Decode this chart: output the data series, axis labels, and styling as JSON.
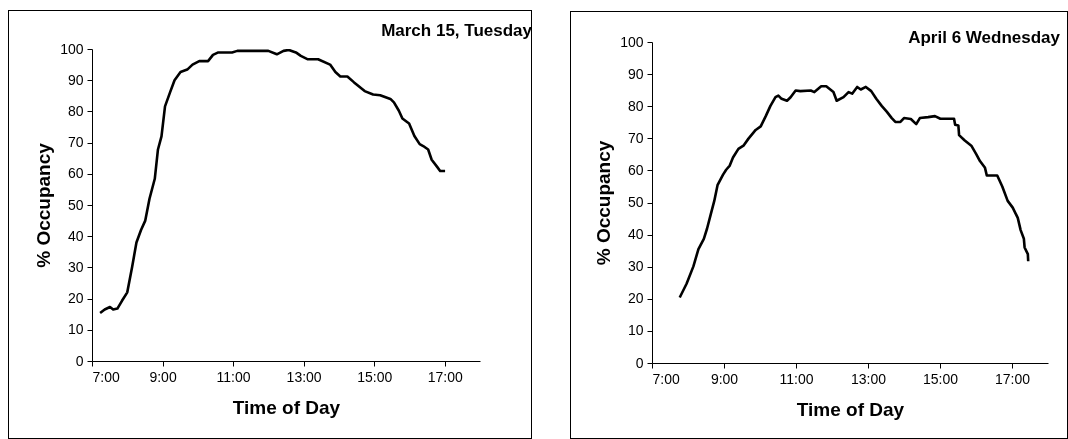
{
  "chart_data": [
    {
      "type": "line",
      "title": "March 15, Tuesday",
      "xlabel": "Time of Day",
      "ylabel": "% Occupancy",
      "xlim": [
        7,
        18
      ],
      "xticks": [
        {
          "value": 7,
          "label": "7:00"
        },
        {
          "value": 9,
          "label": "9:00"
        },
        {
          "value": 11,
          "label": "11:00"
        },
        {
          "value": 13,
          "label": "13:00"
        },
        {
          "value": 15,
          "label": "15:00"
        },
        {
          "value": 17,
          "label": "17:00"
        }
      ],
      "ylim": [
        0,
        100
      ],
      "yticks": [
        0,
        10,
        20,
        30,
        40,
        50,
        60,
        70,
        80,
        90,
        100
      ],
      "grid": false,
      "series": [
        {
          "color": "#000000",
          "x": [
            7.23,
            7.36,
            7.51,
            7.6,
            7.72,
            7.85,
            8.0,
            8.14,
            8.26,
            8.39,
            8.51,
            8.63,
            8.78,
            8.87,
            8.97,
            9.07,
            9.21,
            9.34,
            9.51,
            9.7,
            9.85,
            10.04,
            10.29,
            10.43,
            10.58,
            10.97,
            11.12,
            12.0,
            12.24,
            12.43,
            12.58,
            12.78,
            12.92,
            13.12,
            13.41,
            13.75,
            13.9,
            14.04,
            14.24,
            14.43,
            14.73,
            14.97,
            15.17,
            15.46,
            15.56,
            15.7,
            15.8,
            15.99,
            16.14,
            16.29,
            16.39,
            16.53,
            16.63,
            16.78,
            16.87,
            17.01
          ],
          "values": [
            15.4,
            16.5,
            17.3,
            16.5,
            16.8,
            19.3,
            22,
            30.3,
            38,
            42,
            45,
            52,
            58.4,
            67.8,
            72,
            81.6,
            86,
            90,
            92.6,
            93.4,
            95,
            96.1,
            96.1,
            98.1,
            98.9,
            98.9,
            99.4,
            99.4,
            98.3,
            99.4,
            99.7,
            98.9,
            97.8,
            96.7,
            96.7,
            95,
            92.6,
            91.2,
            91.2,
            89.3,
            86.5,
            85.4,
            85.2,
            84,
            82.9,
            80.2,
            77.7,
            76.1,
            72.1,
            69.5,
            68.9,
            67.8,
            64.5,
            62.3,
            60.9,
            60.9
          ]
        }
      ]
    },
    {
      "type": "line",
      "title": "April 6 Wednesday",
      "xlabel": "Time of Day",
      "ylabel": "% Occupancy",
      "xlim": [
        7,
        18
      ],
      "xticks": [
        {
          "value": 7,
          "label": "7:00"
        },
        {
          "value": 9,
          "label": "9:00"
        },
        {
          "value": 11,
          "label": "11:00"
        },
        {
          "value": 13,
          "label": "13:00"
        },
        {
          "value": 15,
          "label": "15:00"
        },
        {
          "value": 17,
          "label": "17:00"
        }
      ],
      "ylim": [
        0,
        100
      ],
      "yticks": [
        0,
        10,
        20,
        30,
        40,
        50,
        60,
        70,
        80,
        90,
        100
      ],
      "grid": false,
      "series": [
        {
          "color": "#000000",
          "x": [
            7.77,
            7.96,
            8.15,
            8.29,
            8.44,
            8.53,
            8.63,
            8.73,
            8.82,
            8.97,
            9.06,
            9.16,
            9.25,
            9.4,
            9.54,
            9.68,
            9.88,
            10.02,
            10.16,
            10.29,
            10.43,
            10.51,
            10.6,
            10.75,
            10.85,
            10.99,
            11.12,
            11.41,
            11.51,
            11.7,
            11.84,
            12.04,
            12.13,
            12.32,
            12.46,
            12.56,
            12.7,
            12.8,
            12.94,
            13.09,
            13.23,
            13.38,
            13.52,
            13.66,
            13.76,
            13.9,
            14.0,
            14.19,
            14.34,
            14.44,
            14.67,
            14.86,
            15.01,
            15.39,
            15.42,
            15.51,
            15.53,
            15.68,
            15.87,
            16.01,
            16.11,
            16.25,
            16.3,
            16.59,
            16.73,
            16.88,
            17.02,
            17.16,
            17.24,
            17.33,
            17.35,
            17.44,
            17.45
          ],
          "values": [
            20.4,
            24.7,
            30.1,
            35.5,
            38.7,
            41.9,
            46.2,
            50.5,
            55.4,
            58.6,
            60.2,
            61.5,
            64,
            66.7,
            67.7,
            69.9,
            72.6,
            73.7,
            76.9,
            80.1,
            82.8,
            83.3,
            82.3,
            81.7,
            82.8,
            84.9,
            84.7,
            84.9,
            84.4,
            86.2,
            86.2,
            84.4,
            81.7,
            82.8,
            84.4,
            83.9,
            86,
            85.2,
            86,
            84.7,
            82.3,
            80.1,
            78.3,
            76.3,
            75.1,
            75.1,
            76.3,
            76,
            74.4,
            76.3,
            76.6,
            76.9,
            76.1,
            76.1,
            74.2,
            74,
            71,
            69.4,
            67.7,
            65,
            62.9,
            60.8,
            58.4,
            58.4,
            55,
            50.5,
            48.4,
            45.2,
            41.4,
            38.7,
            36,
            33.9,
            31.7
          ]
        }
      ]
    }
  ]
}
